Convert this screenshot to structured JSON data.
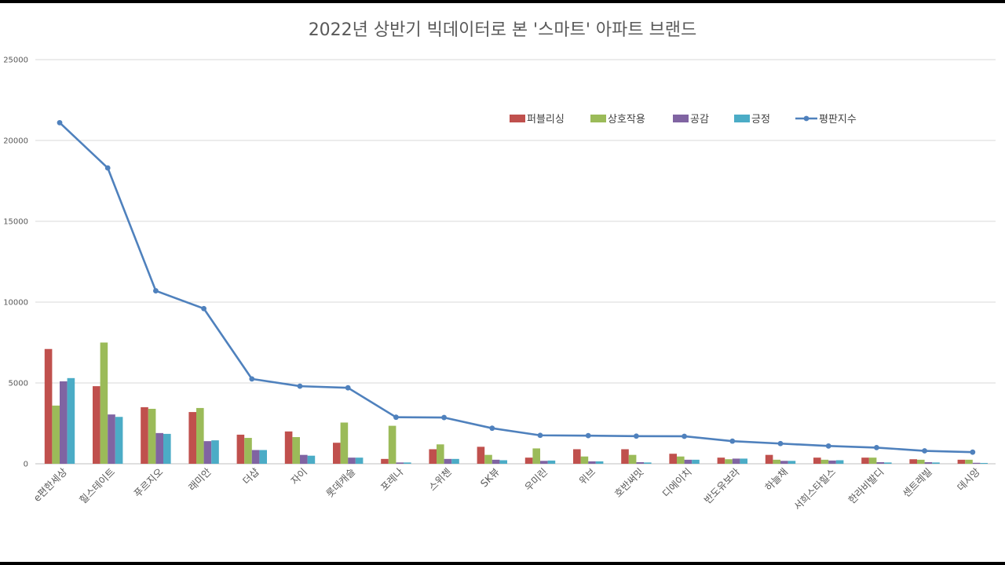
{
  "chart_data": {
    "type": "bar",
    "title": "2022년 상반기 빅데이터로 본 '스마트' 아파트 브랜드",
    "categories": [
      "e편한세상",
      "힐스테이트",
      "푸르지오",
      "래미안",
      "더샵",
      "자이",
      "롯데캐슬",
      "포레나",
      "스위첸",
      "SK뷰",
      "우미린",
      "위브",
      "호반써밋",
      "디에이치",
      "반도유보라",
      "하늘채",
      "서희스타힐스",
      "한라비발디",
      "센트레빌",
      "데시앙"
    ],
    "ylim": [
      0,
      25000
    ],
    "yticks": [
      0,
      5000,
      10000,
      15000,
      20000,
      25000
    ],
    "grid": true,
    "legend_position": "top-right",
    "series": [
      {
        "name": "퍼블리싱",
        "type": "bar",
        "color": "#c0504d",
        "values": [
          7100,
          4800,
          3500,
          3200,
          1800,
          2000,
          1300,
          300,
          900,
          1050,
          380,
          900,
          900,
          620,
          380,
          550,
          380,
          380,
          280,
          250
        ]
      },
      {
        "name": "상호작용",
        "type": "bar",
        "color": "#9bbb59",
        "values": [
          3600,
          7500,
          3400,
          3450,
          1600,
          1650,
          2550,
          2350,
          1200,
          550,
          950,
          450,
          550,
          450,
          280,
          250,
          250,
          380,
          250,
          250
        ]
      },
      {
        "name": "공감",
        "type": "bar",
        "color": "#8064a2",
        "values": [
          5100,
          3050,
          1900,
          1400,
          850,
          550,
          380,
          80,
          300,
          250,
          180,
          150,
          100,
          250,
          320,
          180,
          200,
          100,
          100,
          60
        ]
      },
      {
        "name": "긍정",
        "type": "bar",
        "color": "#4bacc6",
        "values": [
          5300,
          2900,
          1850,
          1450,
          850,
          500,
          380,
          80,
          300,
          220,
          200,
          150,
          80,
          250,
          320,
          180,
          220,
          80,
          80,
          50
        ]
      },
      {
        "name": "평판지수",
        "type": "line",
        "color": "#4f81bd",
        "values": [
          21100,
          18300,
          10700,
          9600,
          5250,
          4800,
          4700,
          2880,
          2860,
          2200,
          1760,
          1740,
          1710,
          1700,
          1400,
          1250,
          1100,
          1000,
          800,
          720
        ]
      }
    ]
  }
}
